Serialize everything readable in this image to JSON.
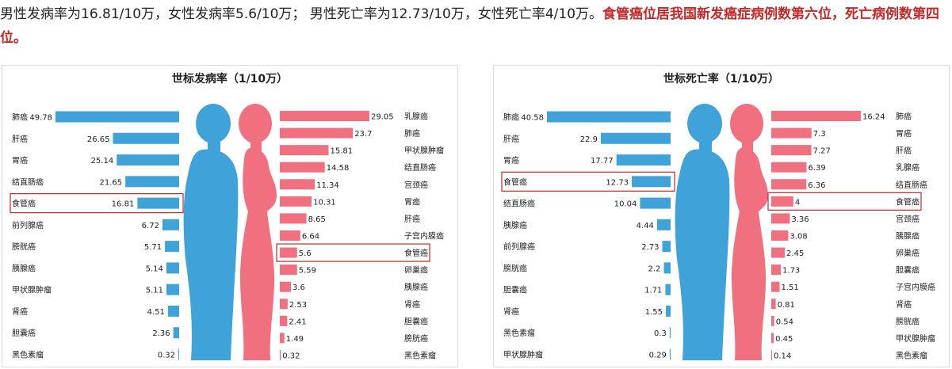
{
  "intro": {
    "normal": "男性发病率为16.81/10万，女性发病率5.6/10万； 男性死亡率为12.73/10万，女性死亡率4/10万。",
    "highlight": "食管癌位居我国新发癌症病例数第六位，死亡病例数第四位。"
  },
  "colors": {
    "male": "#3fa2d8",
    "female": "#f07080",
    "highlight_box": "#c62828",
    "highlight_text": "#c62828"
  },
  "chart_data": [
    {
      "type": "bar",
      "title": "世标发病率（1/10万）",
      "highlight": "食管癌",
      "male": {
        "categories": [
          "肺癌",
          "肝癌",
          "胃癌",
          "结直肠癌",
          "食管癌",
          "前列腺癌",
          "膀胱癌",
          "胰腺癌",
          "甲状腺肿瘤",
          "肾癌",
          "胆囊癌",
          "黑色素瘤"
        ],
        "values": [
          49.78,
          26.65,
          25.14,
          21.65,
          16.81,
          6.72,
          5.71,
          5.14,
          5.11,
          4.51,
          2.36,
          0.32
        ]
      },
      "female": {
        "categories": [
          "乳腺癌",
          "肺癌",
          "甲状腺肿瘤",
          "结直肠癌",
          "宫颈癌",
          "胃癌",
          "肝癌",
          "子宫内膜癌",
          "食管癌",
          "卵巢癌",
          "胰腺癌",
          "肾癌",
          "胆囊癌",
          "膀胱癌",
          "黑色素瘤"
        ],
        "values": [
          29.05,
          23.7,
          15.81,
          14.58,
          11.34,
          10.31,
          8.65,
          6.64,
          5.6,
          5.59,
          3.6,
          2.53,
          2.41,
          1.49,
          0.32
        ]
      }
    },
    {
      "type": "bar",
      "title": "世标死亡率（1/10万）",
      "highlight": "食管癌",
      "male": {
        "categories": [
          "肺癌",
          "肝癌",
          "胃癌",
          "食管癌",
          "结直肠癌",
          "胰腺癌",
          "前列腺癌",
          "膀胱癌",
          "胆囊癌",
          "肾癌",
          "黑色素瘤",
          "甲状腺肿瘤"
        ],
        "values": [
          40.58,
          22.9,
          17.77,
          12.73,
          10.04,
          4.44,
          2.73,
          2.2,
          1.71,
          1.55,
          0.3,
          0.29
        ]
      },
      "female": {
        "categories": [
          "肺癌",
          "胃癌",
          "肝癌",
          "乳腺癌",
          "结直肠癌",
          "食管癌",
          "宫颈癌",
          "胰腺癌",
          "卵巢癌",
          "胆囊癌",
          "子宫内膜癌",
          "肾癌",
          "膀胱癌",
          "甲状腺肿瘤",
          "黑色素瘤"
        ],
        "values": [
          16.24,
          7.3,
          7.27,
          6.39,
          6.36,
          4,
          3.36,
          3.08,
          2.45,
          1.73,
          1.51,
          0.81,
          0.54,
          0.45,
          0.14
        ]
      }
    }
  ]
}
